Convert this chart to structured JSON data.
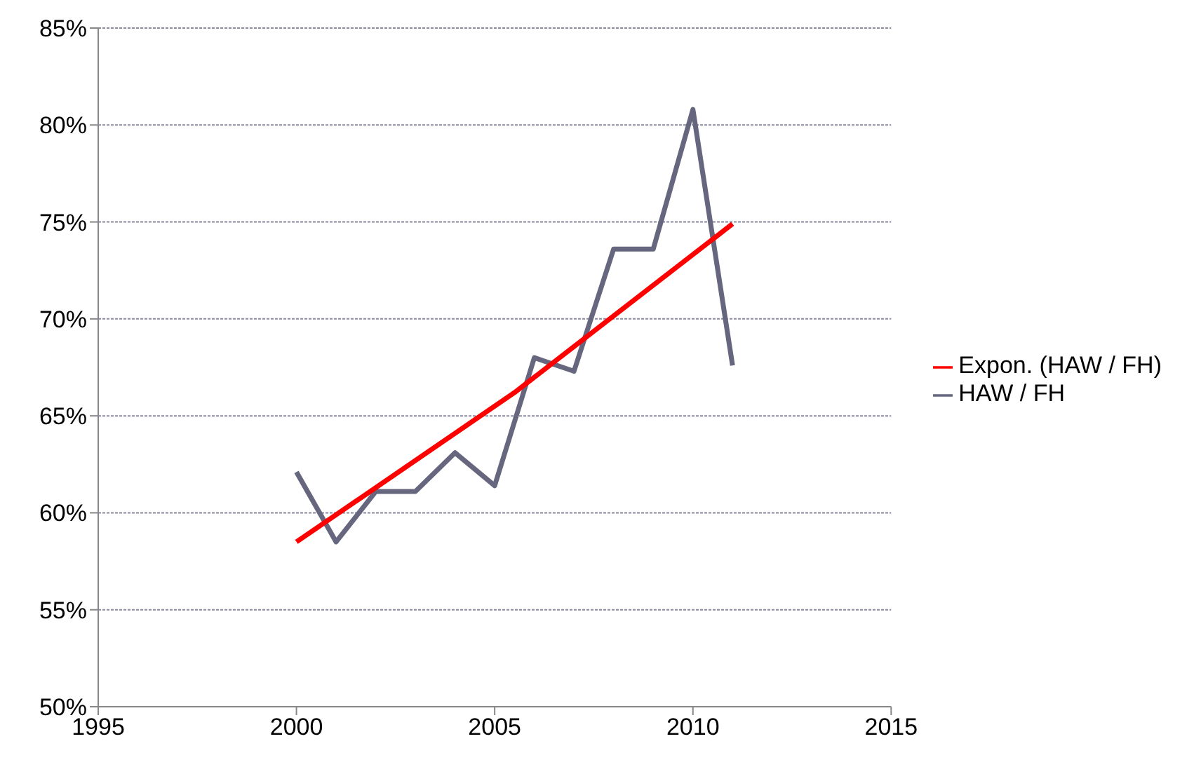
{
  "chart_data": {
    "type": "line",
    "x": [
      2000,
      2001,
      2002,
      2003,
      2004,
      2005,
      2006,
      2007,
      2008,
      2009,
      2010,
      2011
    ],
    "series": [
      {
        "name": "HAW / FH",
        "color": "#66667f",
        "values": [
          62.1,
          58.5,
          61.1,
          61.1,
          63.1,
          61.4,
          68.0,
          67.3,
          73.6,
          73.6,
          80.8,
          67.6
        ]
      },
      {
        "name": "Expon. (HAW / FH)",
        "color": "#ff0000",
        "x": [
          2000,
          2005.5,
          2011
        ],
        "values": [
          58.5,
          66.2,
          74.9
        ]
      }
    ],
    "xlim": [
      1995,
      2015
    ],
    "xticks": [
      1995,
      2000,
      2005,
      2010,
      2015
    ],
    "ylim": [
      50,
      85
    ],
    "yticks": [
      {
        "value": 50,
        "label": "50%"
      },
      {
        "value": 55,
        "label": "55%"
      },
      {
        "value": 60,
        "label": "60%"
      },
      {
        "value": 65,
        "label": "65%"
      },
      {
        "value": 70,
        "label": "70%"
      },
      {
        "value": 75,
        "label": "75%"
      },
      {
        "value": 80,
        "label": "80%"
      },
      {
        "value": 85,
        "label": "85%"
      }
    ],
    "grid": "y",
    "legend": "right",
    "marker": "none",
    "line_style": "solid"
  }
}
